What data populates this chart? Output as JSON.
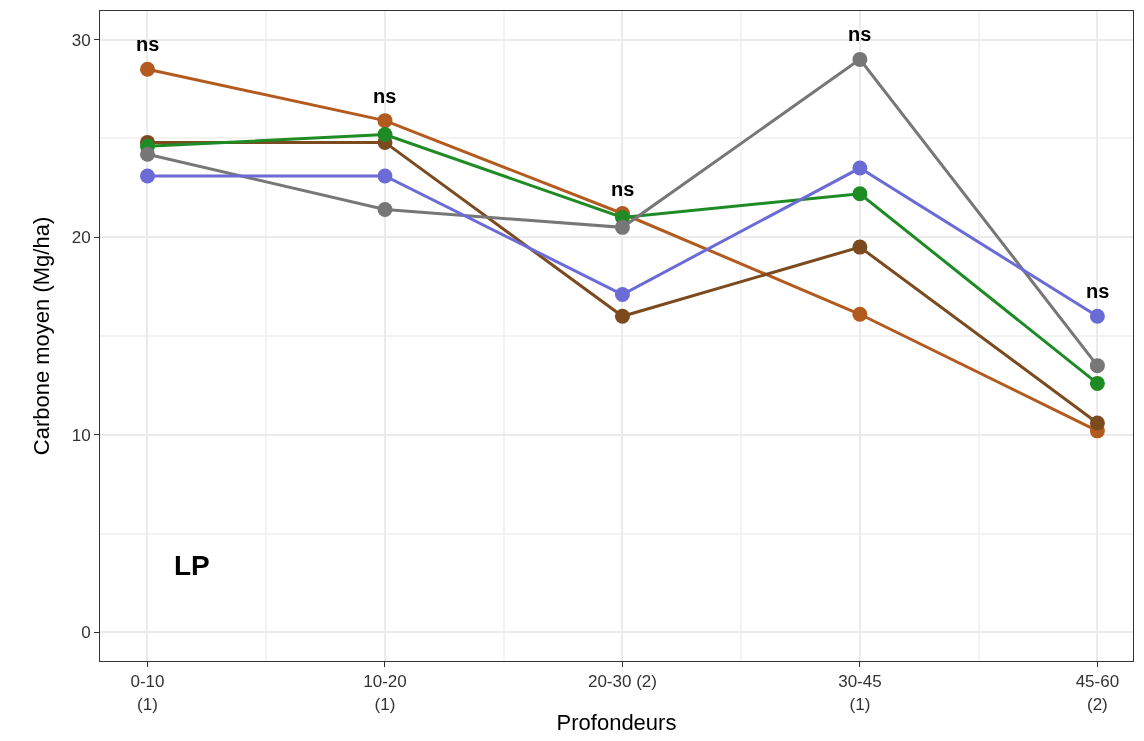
{
  "chart_data": {
    "type": "line",
    "xlabel": "Profondeurs",
    "ylabel": "Carbone moyen (Mg/ha)",
    "categories": [
      "0-10\n(1)",
      "10-20\n(1)",
      "20-30 (2)",
      "30-45\n(1)",
      "45-60\n(2)"
    ],
    "series": [
      {
        "color": "#b35a1f",
        "values": [
          28.5,
          25.9,
          21.2,
          16.1,
          10.2
        ]
      },
      {
        "color": "#7b4a1e",
        "values": [
          24.8,
          24.8,
          16.0,
          19.5,
          10.6
        ]
      },
      {
        "color": "#1f8b24",
        "values": [
          24.6,
          25.2,
          21.0,
          22.2,
          12.6
        ]
      },
      {
        "color": "#777777",
        "values": [
          24.2,
          21.4,
          20.5,
          29.0,
          13.5
        ]
      },
      {
        "color": "#6b6bd6",
        "values": [
          23.1,
          23.1,
          17.1,
          23.5,
          16.0
        ]
      }
    ],
    "annotations": [
      "ns",
      "ns",
      "ns",
      "ns",
      "ns",
      "LP"
    ],
    "ylim": [
      -1.45,
      31.45
    ],
    "yticks": [
      0,
      10,
      20,
      30
    ],
    "grid": true,
    "marker": "circle",
    "line_style": "solid"
  }
}
